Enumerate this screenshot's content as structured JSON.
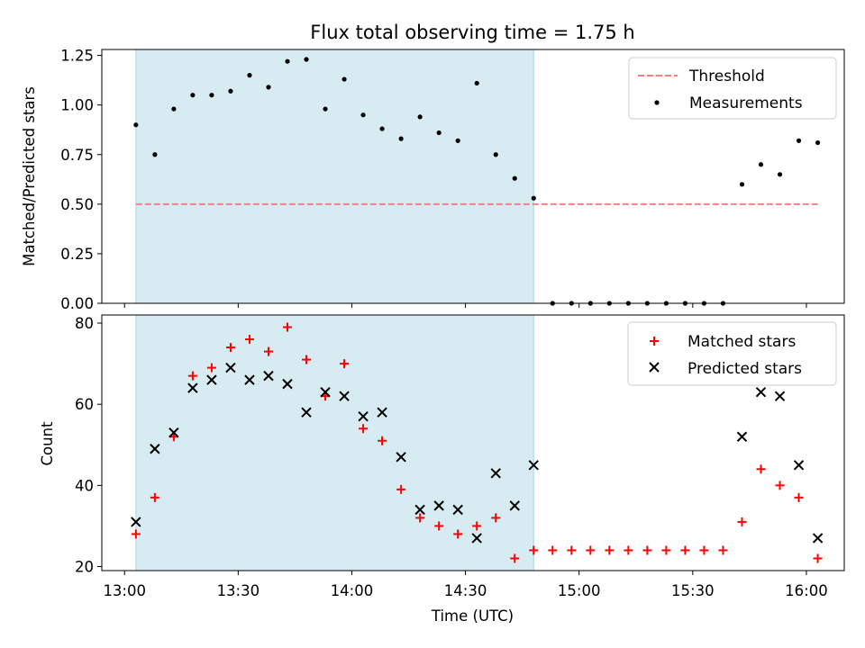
{
  "title": "Flux total observing time = 1.75 h",
  "colors": {
    "shade": "#add8e6",
    "threshold": "#ff7f7f",
    "measurement": "#000000",
    "matched": "#ff0000",
    "predicted": "#000000"
  },
  "chart_data": [
    {
      "type": "scatter",
      "ylabel": "Matched/Predicted stars",
      "xlabel": "",
      "ylim": [
        0,
        1.28
      ],
      "xlim": [
        "12:54",
        "16:10"
      ],
      "yticks": [
        "0.00",
        "0.25",
        "0.50",
        "0.75",
        "1.00",
        "1.25"
      ],
      "ytick_values": [
        0,
        0.25,
        0.5,
        0.75,
        1.0,
        1.25
      ],
      "shaded_span": [
        "13:03",
        "14:48"
      ],
      "legend_position": "top-right",
      "threshold": {
        "name": "Threshold",
        "value": 0.5,
        "x_range": [
          "13:03",
          "16:03"
        ]
      },
      "series": [
        {
          "name": "Measurements",
          "x": [
            "13:03",
            "13:08",
            "13:13",
            "13:18",
            "13:23",
            "13:28",
            "13:33",
            "13:38",
            "13:43",
            "13:48",
            "13:53",
            "13:58",
            "14:03",
            "14:08",
            "14:13",
            "14:18",
            "14:23",
            "14:28",
            "14:33",
            "14:38",
            "14:43",
            "14:48",
            "14:53",
            "14:58",
            "15:03",
            "15:08",
            "15:13",
            "15:18",
            "15:23",
            "15:28",
            "15:33",
            "15:38",
            "15:43",
            "15:48",
            "15:53",
            "15:58",
            "16:03"
          ],
          "values": [
            0.9,
            0.75,
            0.98,
            1.05,
            1.05,
            1.07,
            1.15,
            1.09,
            1.22,
            1.23,
            0.98,
            1.13,
            0.95,
            0.88,
            0.83,
            0.94,
            0.86,
            0.82,
            1.11,
            0.75,
            0.63,
            0.53,
            0,
            0,
            0,
            0,
            0,
            0,
            0,
            0,
            0,
            0,
            0.6,
            0.7,
            0.65,
            0.82,
            0.81
          ]
        }
      ]
    },
    {
      "type": "scatter",
      "ylabel": "Count",
      "xlabel": "Time (UTC)",
      "ylim": [
        19,
        82
      ],
      "xlim": [
        "12:54",
        "16:10"
      ],
      "yticks": [
        "20",
        "40",
        "60",
        "80"
      ],
      "ytick_values": [
        20,
        40,
        60,
        80
      ],
      "xticks": [
        "13:00",
        "13:30",
        "14:00",
        "14:30",
        "15:00",
        "15:30",
        "16:00"
      ],
      "shaded_span": [
        "13:03",
        "14:48"
      ],
      "legend_position": "top-right",
      "series": [
        {
          "name": "Matched stars",
          "marker": "plus",
          "x": [
            "13:03",
            "13:08",
            "13:13",
            "13:18",
            "13:23",
            "13:28",
            "13:33",
            "13:38",
            "13:43",
            "13:48",
            "13:53",
            "13:58",
            "14:03",
            "14:08",
            "14:13",
            "14:18",
            "14:23",
            "14:28",
            "14:33",
            "14:38",
            "14:43",
            "14:48",
            "14:53",
            "14:58",
            "15:03",
            "15:08",
            "15:13",
            "15:18",
            "15:23",
            "15:28",
            "15:33",
            "15:38",
            "15:43",
            "15:48",
            "15:53",
            "15:58",
            "16:03"
          ],
          "values": [
            28,
            37,
            52,
            67,
            69,
            74,
            76,
            73,
            79,
            71,
            62,
            70,
            54,
            51,
            39,
            32,
            30,
            28,
            30,
            32,
            22,
            24,
            24,
            24,
            24,
            24,
            24,
            24,
            24,
            24,
            24,
            24,
            31,
            44,
            40,
            37,
            22
          ]
        },
        {
          "name": "Predicted stars",
          "marker": "x",
          "x": [
            "13:03",
            "13:08",
            "13:13",
            "13:18",
            "13:23",
            "13:28",
            "13:33",
            "13:38",
            "13:43",
            "13:48",
            "13:53",
            "13:58",
            "14:03",
            "14:08",
            "14:13",
            "14:18",
            "14:23",
            "14:28",
            "14:33",
            "14:38",
            "14:43",
            "14:48",
            "15:43",
            "15:48",
            "15:53",
            "15:58",
            "16:03"
          ],
          "values": [
            31,
            49,
            53,
            64,
            66,
            69,
            66,
            67,
            65,
            58,
            63,
            62,
            57,
            58,
            47,
            34,
            35,
            34,
            27,
            43,
            35,
            45,
            52,
            63,
            62,
            45,
            27
          ]
        }
      ]
    }
  ]
}
